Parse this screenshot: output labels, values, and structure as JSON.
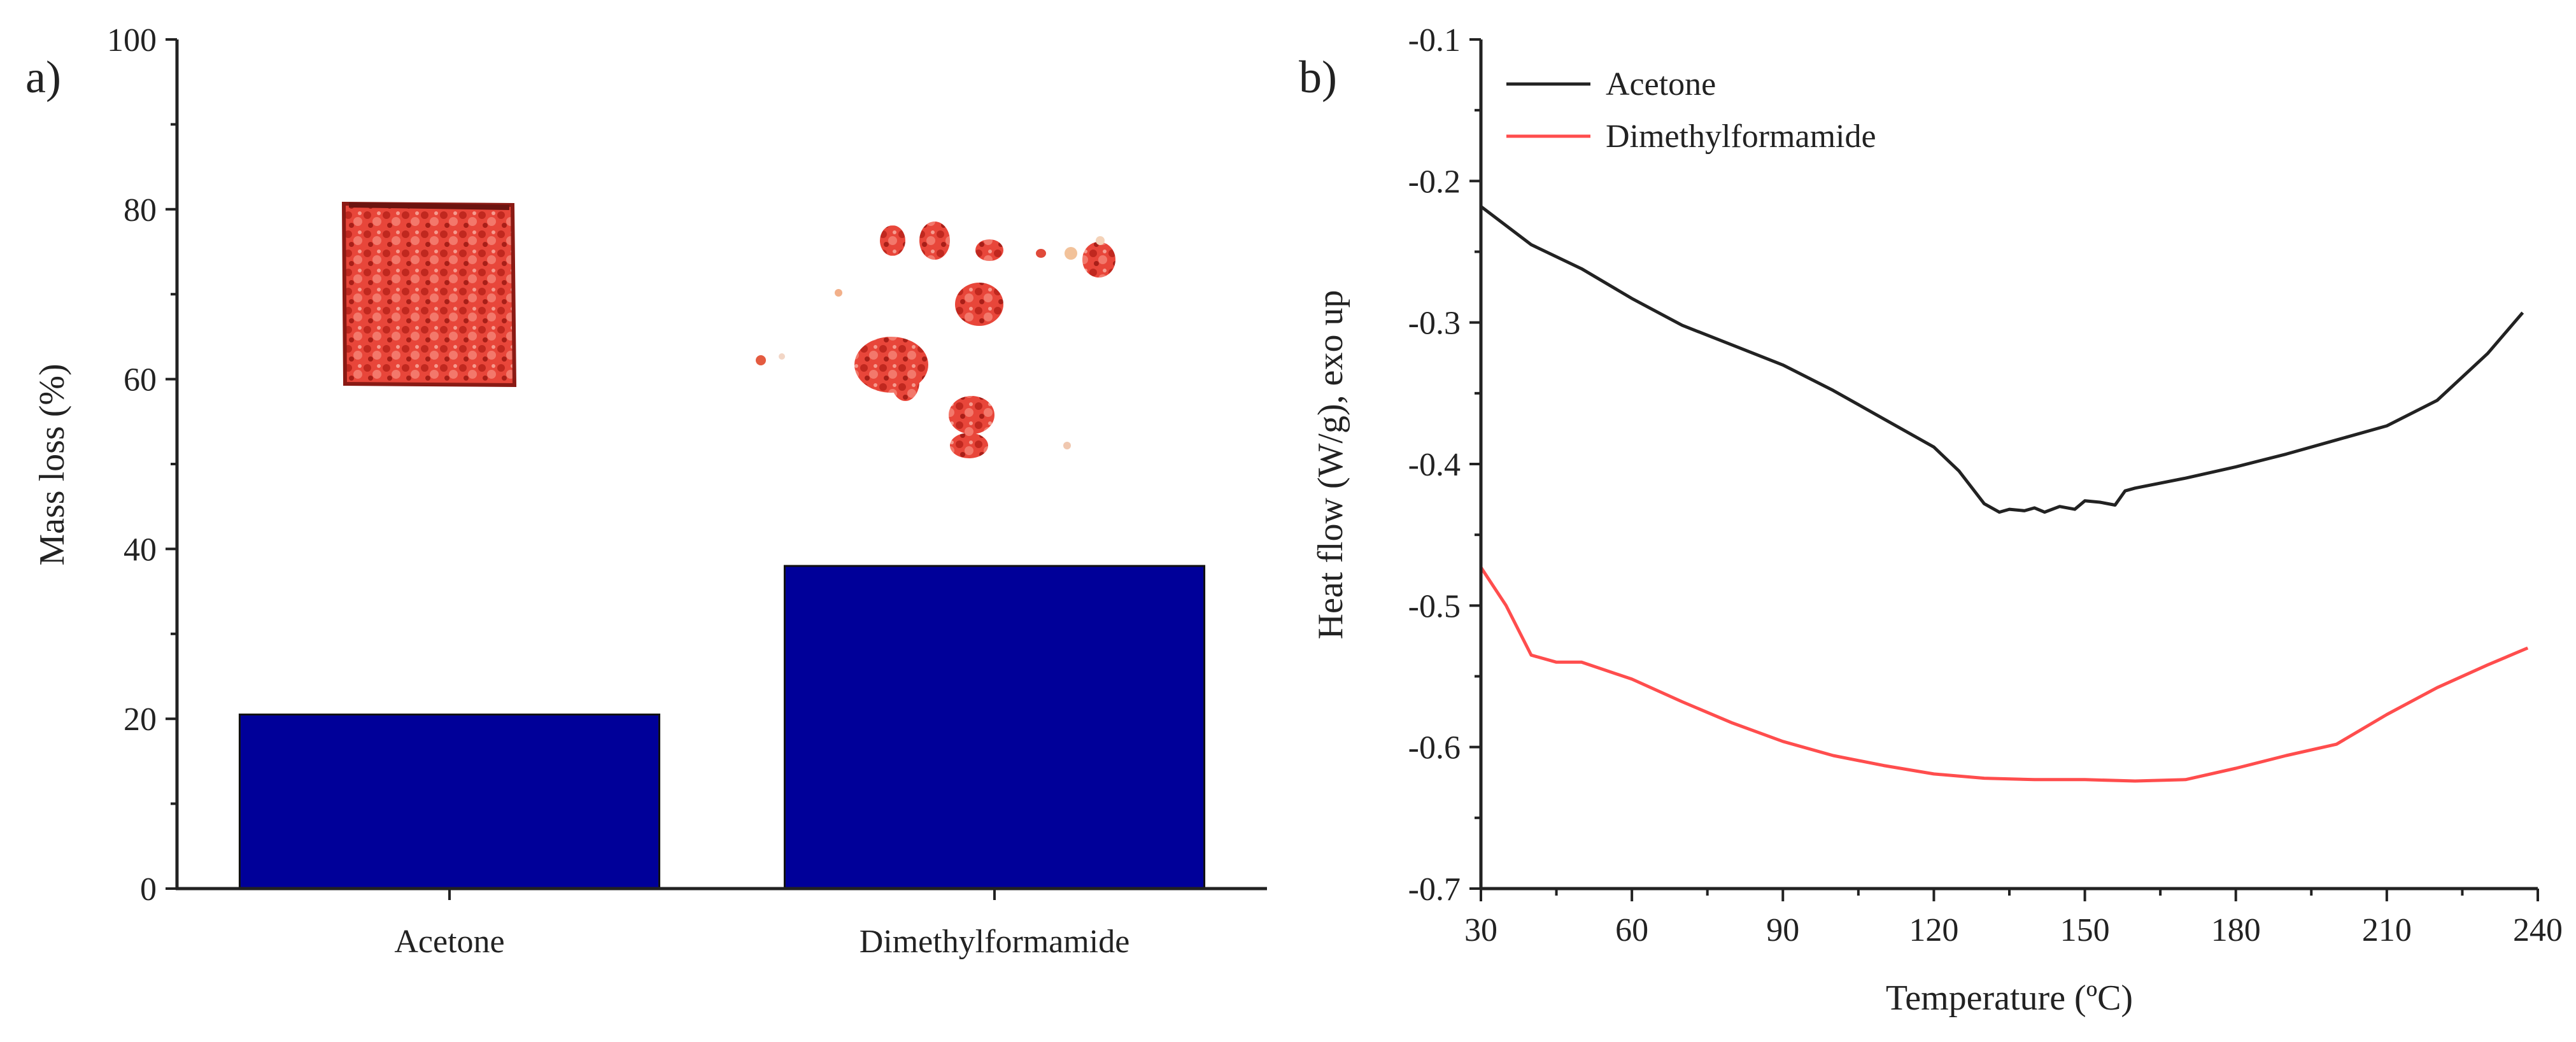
{
  "chart_data": [
    {
      "panel_label": "a)",
      "type": "bar",
      "categories": [
        "Acetone",
        "Dimethylformamide"
      ],
      "values": [
        20.5,
        38.0
      ],
      "xlabel": "",
      "ylabel": "Mass loss (%)",
      "ylim": [
        0,
        100
      ],
      "yticks": [
        "0",
        "20",
        "40",
        "60",
        "80",
        "100"
      ],
      "bar_color": "#000099",
      "grid": false,
      "inset_photos": [
        "intact-sample-photo",
        "fragmented-sample-photo"
      ]
    },
    {
      "panel_label": "b)",
      "type": "line",
      "xlabel": "Temperature (ºC)",
      "ylabel": "Heat flow (W/g), exo up",
      "xlim": [
        30,
        240
      ],
      "ylim": [
        -0.7,
        -0.1
      ],
      "xticks": [
        "30",
        "60",
        "90",
        "120",
        "150",
        "180",
        "210",
        "240"
      ],
      "yticks": [
        "-0.7",
        "-0.6",
        "-0.5",
        "-0.4",
        "-0.3",
        "-0.2",
        "-0.1"
      ],
      "legend": "top-left",
      "grid": false,
      "series": [
        {
          "name": "Acetone",
          "color": "#222222",
          "x": [
            30,
            40,
            50,
            60,
            70,
            80,
            90,
            100,
            110,
            120,
            125,
            130,
            133,
            135,
            138,
            140,
            142,
            145,
            148,
            150,
            153,
            156,
            158,
            160,
            170,
            180,
            190,
            200,
            210,
            220,
            230,
            237
          ],
          "y": [
            -0.218,
            -0.245,
            -0.262,
            -0.283,
            -0.302,
            -0.316,
            -0.33,
            -0.348,
            -0.368,
            -0.388,
            -0.405,
            -0.428,
            -0.434,
            -0.432,
            -0.433,
            -0.431,
            -0.434,
            -0.43,
            -0.432,
            -0.426,
            -0.427,
            -0.429,
            -0.419,
            -0.417,
            -0.41,
            -0.402,
            -0.393,
            -0.383,
            -0.373,
            -0.355,
            -0.322,
            -0.293
          ]
        },
        {
          "name": "Dimethylformamide",
          "color": "#ff4d4d",
          "x": [
            30,
            35,
            40,
            45,
            50,
            60,
            70,
            80,
            90,
            100,
            110,
            120,
            130,
            140,
            150,
            160,
            170,
            180,
            190,
            200,
            210,
            220,
            230,
            238
          ],
          "y": [
            -0.473,
            -0.5,
            -0.535,
            -0.54,
            -0.54,
            -0.552,
            -0.568,
            -0.583,
            -0.596,
            -0.606,
            -0.613,
            -0.619,
            -0.622,
            -0.623,
            -0.623,
            -0.624,
            -0.623,
            -0.615,
            -0.606,
            -0.598,
            -0.577,
            -0.558,
            -0.542,
            -0.53
          ]
        }
      ]
    }
  ]
}
